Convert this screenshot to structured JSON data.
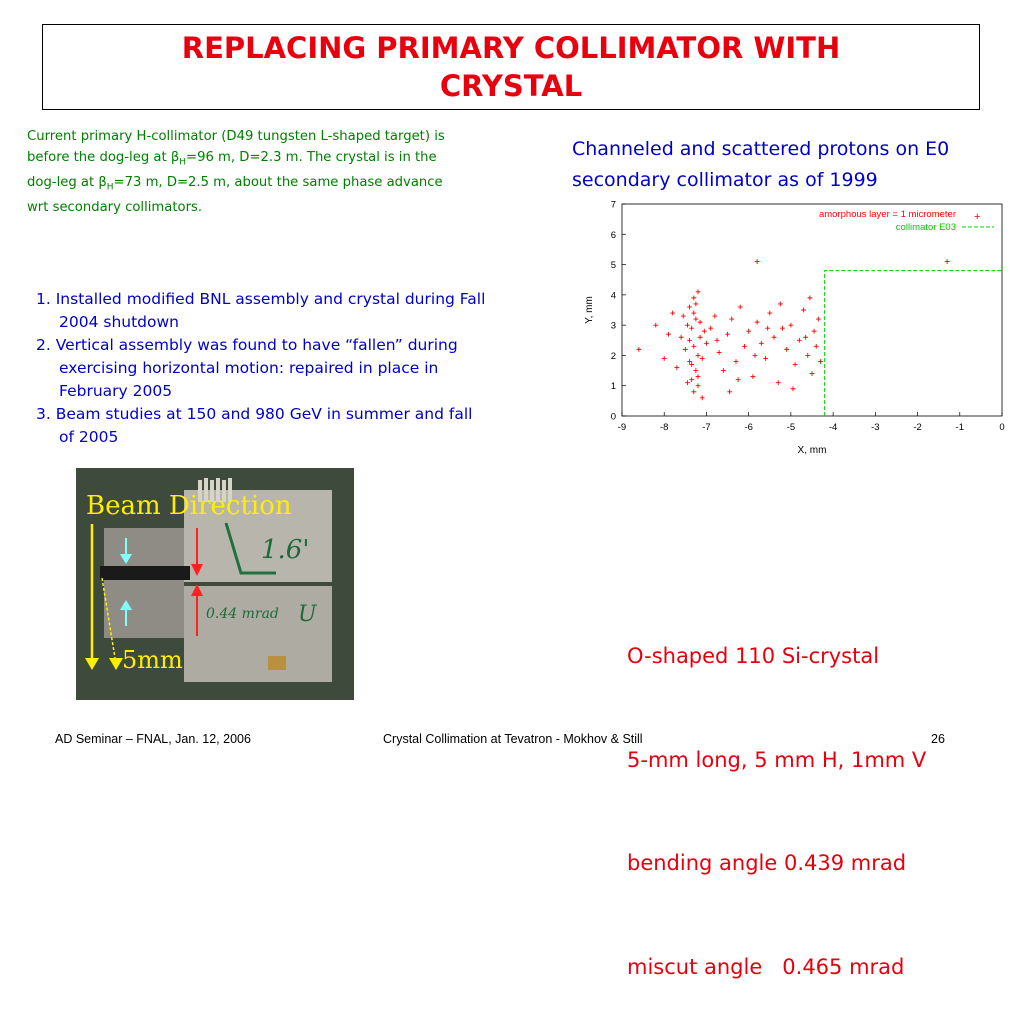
{
  "title": "REPLACING PRIMARY COLLIMATOR WITH CRYSTAL",
  "intro": {
    "text_1": "Current primary H-collimator (D49 tungsten L-shaped target) is before the dog-leg at ",
    "beta_1": "β",
    "sub_1": "H",
    "text_2": "=96 m, D=2.3 m. The crystal is in the dog-leg at ",
    "beta_2": "β",
    "sub_2": "H",
    "text_3": "=73 m, D=2.5 m, about the same phase advance wrt secondary collimators."
  },
  "plot_caption": "Channeled and scattered protons on E0 secondary collimator as of 1999",
  "steps": [
    {
      "num": "1.",
      "text": "Installed modified BNL assembly and crystal during Fall 2004 shutdown"
    },
    {
      "num": "2.",
      "text": "Vertical assembly was found to have “fallen” during exercising horizontal motion: repaired in place in February 2005"
    },
    {
      "num": "3.",
      "text": "Beam studies at 150 and 980 GeV in summer and fall of 2005"
    }
  ],
  "photo": {
    "beam_label": "Beam Direction",
    "scale_label": "5mm",
    "marking_1": "1.6'",
    "marking_2": "0.44 mrad",
    "marking_3": "U"
  },
  "crystal_specs": [
    "O-shaped 110 Si-crystal",
    "5-mm long, 5 mm H, 1mm V",
    "bending angle 0.439 mrad",
    "miscut angle   0.465 mrad"
  ],
  "footer": {
    "left": "AD Seminar – FNAL, Jan. 12, 2006",
    "center": "Crystal Collimation at Tevatron -  Mokhov & Still",
    "page": "26"
  },
  "colors": {
    "title": "#e8000e",
    "intro": "#008000",
    "blue": "#0000cc",
    "series_amorphous": "#ff0000",
    "series_collimator": "#00cc00"
  },
  "chart_data": {
    "type": "scatter",
    "xlabel": "X, mm",
    "ylabel": "Y, mm",
    "xlim": [
      -9,
      0
    ],
    "ylim": [
      0,
      7
    ],
    "xticks": [
      "-9",
      "-8",
      "-7",
      "-6",
      "-5",
      "-4",
      "-3",
      "-2",
      "-1",
      "0"
    ],
    "yticks": [
      "0",
      "1",
      "2",
      "3",
      "4",
      "5",
      "6",
      "7"
    ],
    "legend_position": "top-right",
    "series": [
      {
        "name": "amorphous layer = 1 micrometer",
        "marker": "+",
        "color": "#ff0000",
        "points": [
          [
            -7.3,
            3.9
          ],
          [
            -7.2,
            4.1
          ],
          [
            -7.4,
            3.6
          ],
          [
            -7.25,
            3.2
          ],
          [
            -7.35,
            2.9
          ],
          [
            -7.15,
            2.6
          ],
          [
            -7.3,
            2.3
          ],
          [
            -7.2,
            2.0
          ],
          [
            -7.4,
            1.8
          ],
          [
            -7.25,
            1.5
          ],
          [
            -7.35,
            1.2
          ],
          [
            -7.2,
            1.0
          ],
          [
            -7.3,
            0.8
          ],
          [
            -7.1,
            0.6
          ],
          [
            -7.45,
            3.0
          ],
          [
            -7.05,
            2.8
          ],
          [
            -7.3,
            3.4
          ],
          [
            -7.2,
            1.3
          ],
          [
            -7.4,
            2.5
          ],
          [
            -7.15,
            3.1
          ],
          [
            -7.5,
            2.2
          ],
          [
            -7.0,
            2.4
          ],
          [
            -7.35,
            1.7
          ],
          [
            -7.25,
            3.7
          ],
          [
            -7.6,
            2.6
          ],
          [
            -7.55,
            3.3
          ],
          [
            -7.1,
            1.9
          ],
          [
            -7.45,
            1.1
          ],
          [
            -8.6,
            2.2
          ],
          [
            -8.2,
            3.0
          ],
          [
            -8.0,
            1.9
          ],
          [
            -7.8,
            3.4
          ],
          [
            -7.9,
            2.7
          ],
          [
            -7.7,
            1.6
          ],
          [
            -6.9,
            2.9
          ],
          [
            -6.8,
            3.3
          ],
          [
            -6.7,
            2.1
          ],
          [
            -6.6,
            1.5
          ],
          [
            -6.5,
            2.7
          ],
          [
            -6.4,
            3.2
          ],
          [
            -6.3,
            1.8
          ],
          [
            -6.2,
            3.6
          ],
          [
            -6.1,
            2.3
          ],
          [
            -6.0,
            2.8
          ],
          [
            -5.9,
            1.3
          ],
          [
            -5.8,
            3.1
          ],
          [
            -5.7,
            2.4
          ],
          [
            -5.6,
            1.9
          ],
          [
            -5.5,
            3.4
          ],
          [
            -5.4,
            2.6
          ],
          [
            -5.3,
            1.1
          ],
          [
            -5.2,
            2.9
          ],
          [
            -5.1,
            2.2
          ],
          [
            -5.0,
            3.0
          ],
          [
            -4.9,
            1.7
          ],
          [
            -4.8,
            2.5
          ],
          [
            -4.7,
            3.5
          ],
          [
            -4.6,
            2.0
          ],
          [
            -4.5,
            1.4
          ],
          [
            -4.45,
            2.8
          ],
          [
            -4.4,
            2.3
          ],
          [
            -4.35,
            3.2
          ],
          [
            -6.75,
            2.5
          ],
          [
            -6.25,
            1.2
          ],
          [
            -5.85,
            2.0
          ],
          [
            -5.25,
            3.7
          ],
          [
            -4.95,
            0.9
          ],
          [
            -4.65,
            2.6
          ],
          [
            -6.45,
            0.8
          ],
          [
            -5.55,
            2.9
          ],
          [
            -4.55,
            3.9
          ],
          [
            -4.3,
            1.8
          ],
          [
            -5.8,
            5.1
          ],
          [
            -1.3,
            5.1
          ]
        ]
      },
      {
        "name": "collimator E03",
        "line": true,
        "color": "#00cc00",
        "points": [
          [
            -4.2,
            0
          ],
          [
            -4.2,
            4.8
          ],
          [
            0,
            4.8
          ]
        ]
      }
    ]
  }
}
